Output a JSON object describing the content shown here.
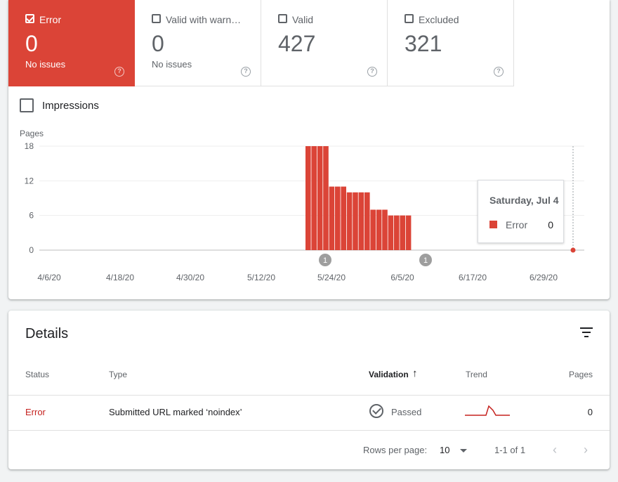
{
  "tiles": [
    {
      "label": "Error",
      "value": "0",
      "sub": "No issues",
      "checked": true
    },
    {
      "label": "Valid with warnin…",
      "value": "0",
      "sub": "No issues",
      "checked": false
    },
    {
      "label": "Valid",
      "value": "427",
      "sub": "",
      "checked": false
    },
    {
      "label": "Excluded",
      "value": "321",
      "sub": "",
      "checked": false
    }
  ],
  "impressions_label": "Impressions",
  "help_glyph": "?",
  "chart_data": {
    "type": "bar",
    "ylabel": "Pages",
    "ylim": [
      0,
      18
    ],
    "yticks": [
      0,
      6,
      12,
      18
    ],
    "xtick_labels": [
      "4/6/20",
      "4/18/20",
      "4/30/20",
      "5/12/20",
      "5/24/20",
      "6/5/20",
      "6/17/20",
      "6/29/20"
    ],
    "series": [
      {
        "name": "Error",
        "color": "#db4437",
        "values": [
          18,
          18,
          18,
          18,
          11,
          11,
          11,
          10,
          10,
          10,
          10,
          7,
          7,
          7,
          6,
          6,
          6,
          6
        ]
      }
    ],
    "annotations": [
      {
        "label": "1"
      },
      {
        "label": "1"
      }
    ],
    "grid": true
  },
  "tooltip": {
    "date": "Saturday, Jul 4",
    "series": "Error",
    "value": "0"
  },
  "details": {
    "title": "Details",
    "columns": {
      "status": "Status",
      "type": "Type",
      "validation": "Validation",
      "validation_sort_icon": "↑",
      "trend": "Trend",
      "pages": "Pages"
    },
    "rows": [
      {
        "status": "Error",
        "type": "Submitted URL marked ‘noindex’",
        "validation": "Passed",
        "pages": "0"
      }
    ],
    "status_color": "#c5221f",
    "footer": {
      "rows_per_page_label": "Rows per page:",
      "rows_per_page": "10",
      "range": "1-1 of 1",
      "prev": "‹",
      "next": "›"
    }
  }
}
